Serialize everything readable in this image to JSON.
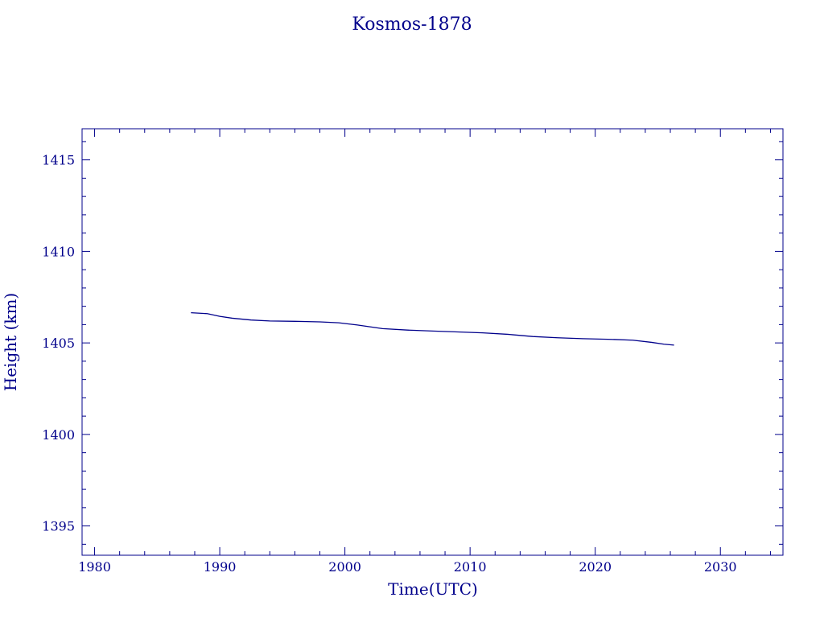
{
  "chart_data": {
    "type": "line",
    "title": "Kosmos-1878",
    "xlabel": "Time(UTC)",
    "ylabel": "Height (km)",
    "xlim": [
      1979,
      2035
    ],
    "ylim": [
      1393.4,
      1416.7
    ],
    "grid": false,
    "legend": "none",
    "x_ticks": [
      1980,
      1990,
      2000,
      2010,
      2020,
      2030
    ],
    "x_tick_labels": [
      "1980",
      "1990",
      "2000",
      "2010",
      "2020",
      "2030"
    ],
    "y_ticks": [
      1395,
      1400,
      1405,
      1410,
      1415
    ],
    "y_tick_labels": [
      "1395",
      "1400",
      "1405",
      "1410",
      "1415"
    ],
    "series": [
      {
        "color": "#00008b",
        "x": [
          1987.7,
          1989.0,
          1990.0,
          1991.0,
          1992.5,
          1994.0,
          1996.0,
          1998.0,
          1999.5,
          2001.0,
          2002.0,
          2003.0,
          2005.0,
          2007.0,
          2009.0,
          2011.0,
          2013.0,
          2015.0,
          2017.0,
          2019.0,
          2021.0,
          2023.0,
          2024.5,
          2025.5,
          2026.3
        ],
        "y": [
          1406.65,
          1406.6,
          1406.45,
          1406.35,
          1406.25,
          1406.2,
          1406.18,
          1406.15,
          1406.1,
          1405.98,
          1405.88,
          1405.78,
          1405.7,
          1405.65,
          1405.6,
          1405.55,
          1405.47,
          1405.35,
          1405.28,
          1405.23,
          1405.2,
          1405.15,
          1405.03,
          1404.93,
          1404.88
        ]
      }
    ],
    "colors": {
      "axes": "#00008b",
      "line": "#00008b",
      "background": "#ffffff"
    }
  }
}
